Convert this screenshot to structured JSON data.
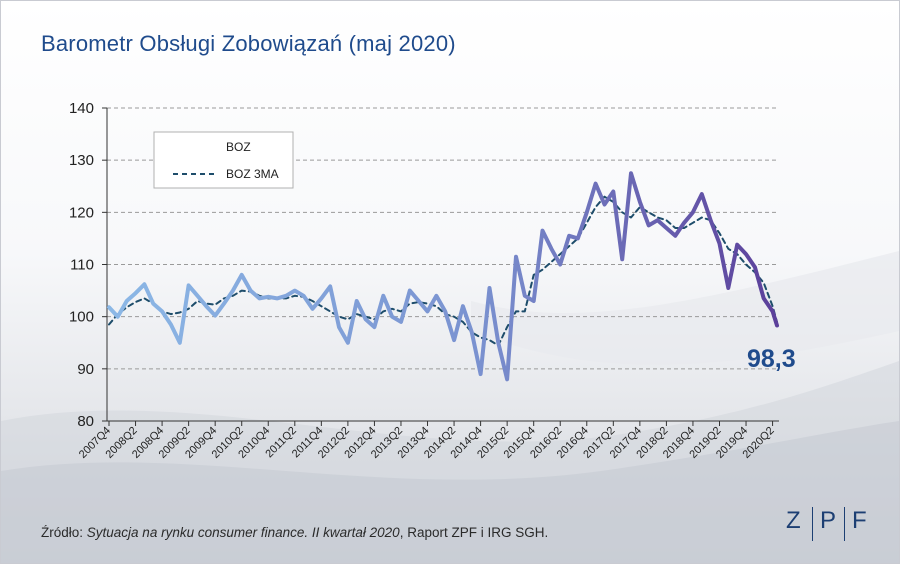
{
  "title": "Barometr Obsługi Zobowiązań (maj 2020)",
  "source": {
    "prefix": "Źródło: ",
    "italic": "Sytuacja na rynku consumer finance. II kwartał 2020",
    "suffix": ", Raport ZPF i IRG SGH."
  },
  "logo": {
    "letters": [
      "Z",
      "P",
      "F"
    ],
    "color": "#1c3f73"
  },
  "colors": {
    "title": "#1f4b8c",
    "boz_start": "#8cb8e6",
    "boz_end": "#5b3f9a",
    "ma": "#1e4d6b",
    "callout": "#1f4b8c"
  },
  "chart_data": {
    "type": "line",
    "title": "",
    "xlabel": "",
    "ylabel": "",
    "ylim": [
      80,
      140
    ],
    "yticks": [
      80,
      90,
      100,
      110,
      120,
      130,
      140
    ],
    "grid": "horizontal dashed",
    "legend_position": "top-left",
    "x_tick_labels": [
      "2007Q4",
      "2008Q2",
      "2008Q4",
      "2009Q2",
      "2009Q4",
      "2010Q2",
      "2010Q4",
      "2011Q2",
      "2011Q4",
      "2012Q2",
      "2012Q4",
      "2013Q2",
      "2013Q4",
      "2014Q2",
      "2014Q4",
      "2015Q2",
      "2015Q4",
      "2016Q2",
      "2016Q4",
      "2017Q2",
      "2017Q4",
      "2018Q2",
      "2018Q4",
      "2019Q2",
      "2019Q4",
      "2020Q2"
    ],
    "x_months": [
      "2007-10",
      "2007-12",
      "2008-02",
      "2008-04",
      "2008-06",
      "2008-08",
      "2008-10",
      "2008-12",
      "2009-02",
      "2009-04",
      "2009-06",
      "2009-08",
      "2009-10",
      "2009-12",
      "2010-02",
      "2010-04",
      "2010-06",
      "2010-08",
      "2010-10",
      "2010-12",
      "2011-02",
      "2011-04",
      "2011-06",
      "2011-08",
      "2011-10",
      "2011-12",
      "2012-02",
      "2012-04",
      "2012-06",
      "2012-08",
      "2012-10",
      "2012-12",
      "2013-02",
      "2013-04",
      "2013-06",
      "2013-08",
      "2013-10",
      "2013-12",
      "2014-02",
      "2014-04",
      "2014-06",
      "2014-08",
      "2014-10",
      "2014-12",
      "2015-02",
      "2015-04",
      "2015-06",
      "2015-08",
      "2015-10",
      "2015-12",
      "2016-02",
      "2016-04",
      "2016-06",
      "2016-08",
      "2016-10",
      "2016-12",
      "2017-02",
      "2017-04",
      "2017-06",
      "2017-08",
      "2017-10",
      "2017-12",
      "2018-02",
      "2018-04",
      "2018-06",
      "2018-08",
      "2018-10",
      "2018-12",
      "2019-02",
      "2019-04",
      "2019-06",
      "2019-08",
      "2019-10",
      "2019-12",
      "2020-02",
      "2020-04",
      "2020-05"
    ],
    "series": [
      {
        "name": "BOZ",
        "style": "solid-gradient",
        "values": [
          101.8,
          100.0,
          103.0,
          104.5,
          106.2,
          102.5,
          101.0,
          98.5,
          95.0,
          106.0,
          104.0,
          102.0,
          100.2,
          102.5,
          105.0,
          108.0,
          105.0,
          103.5,
          103.8,
          103.5,
          104.0,
          105.0,
          104.0,
          101.5,
          103.5,
          105.8,
          98.0,
          95.0,
          103.0,
          99.5,
          98.0,
          104.0,
          100.0,
          99.0,
          105.0,
          103.0,
          101.0,
          104.0,
          101.0,
          95.5,
          102.0,
          97.0,
          89.0,
          105.5,
          95.0,
          88.0,
          111.5,
          104.0,
          103.0,
          116.5,
          113.0,
          110.0,
          115.5,
          115.0,
          120.0,
          125.5,
          121.5,
          124.0,
          111.0,
          127.5,
          122.0,
          117.5,
          118.5,
          117.0,
          115.5,
          118.0,
          120.0,
          123.5,
          118.5,
          114.0,
          105.5,
          113.8,
          112.0,
          109.5,
          103.5,
          101.0,
          98.3
        ]
      },
      {
        "name": "BOZ 3MA",
        "style": "dashed",
        "values": [
          98.5,
          100.5,
          101.8,
          102.8,
          103.5,
          102.5,
          101.0,
          100.5,
          100.8,
          101.5,
          103.0,
          102.5,
          102.3,
          103.5,
          104.0,
          105.0,
          104.8,
          104.0,
          103.5,
          103.5,
          103.5,
          104.0,
          103.8,
          103.0,
          102.0,
          101.0,
          100.0,
          99.5,
          100.5,
          100.0,
          99.5,
          101.0,
          101.5,
          101.0,
          102.5,
          102.8,
          102.5,
          102.0,
          100.5,
          100.0,
          99.0,
          97.0,
          96.0,
          95.5,
          94.5,
          98.0,
          101.0,
          101.0,
          108.0,
          109.0,
          110.5,
          112.0,
          113.5,
          115.0,
          118.0,
          121.0,
          123.0,
          122.0,
          120.0,
          119.0,
          121.0,
          120.0,
          119.0,
          118.5,
          117.0,
          117.0,
          118.0,
          119.0,
          118.5,
          116.0,
          113.0,
          112.0,
          110.0,
          108.5,
          106.5,
          102.0,
          99.0
        ]
      }
    ],
    "callout": {
      "text": "98,3",
      "x": "2020-05",
      "y": 98.3
    }
  }
}
